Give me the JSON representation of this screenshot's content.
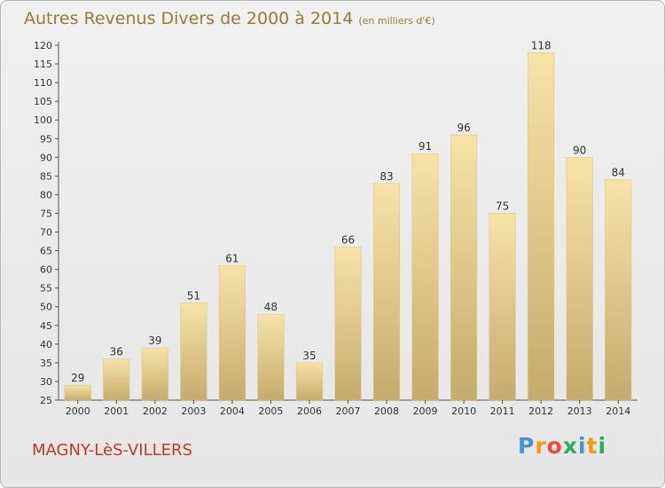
{
  "header": {
    "title": "Autres Revenus Divers de 2000 à 2014",
    "unit_note": "(en milliers d'€)"
  },
  "footer": {
    "commune": "MAGNY-LèS-VILLERS",
    "logo_letters": [
      "P",
      "r",
      "o",
      "x",
      "i",
      "t",
      "i"
    ]
  },
  "colors": {
    "title": "#9a7a3a",
    "commune": "#c0392b",
    "bar_top": "#f7e3a6",
    "bar_bottom": "#c5ab6c",
    "logo": [
      "#4a90d9",
      "#f39c12",
      "#e74c3c",
      "#27ae60",
      "#4a90d9",
      "#f39c12",
      "#27ae60"
    ]
  },
  "chart_data": {
    "type": "bar",
    "title": "Autres Revenus Divers de 2000 à 2014",
    "subtitle": "(en milliers d'€)",
    "categories": [
      "2000",
      "2001",
      "2002",
      "2003",
      "2004",
      "2005",
      "2006",
      "2007",
      "2008",
      "2009",
      "2010",
      "2011",
      "2012",
      "2013",
      "2014"
    ],
    "values": [
      29,
      36,
      39,
      51,
      61,
      48,
      35,
      66,
      83,
      91,
      96,
      75,
      118,
      90,
      84
    ],
    "ylim": [
      25,
      120
    ],
    "yticks": [
      25,
      30,
      35,
      40,
      45,
      50,
      55,
      60,
      65,
      70,
      75,
      80,
      85,
      90,
      95,
      100,
      105,
      110,
      115,
      120
    ],
    "xlabel": "",
    "ylabel": "",
    "grid": false,
    "data_labels": true
  }
}
